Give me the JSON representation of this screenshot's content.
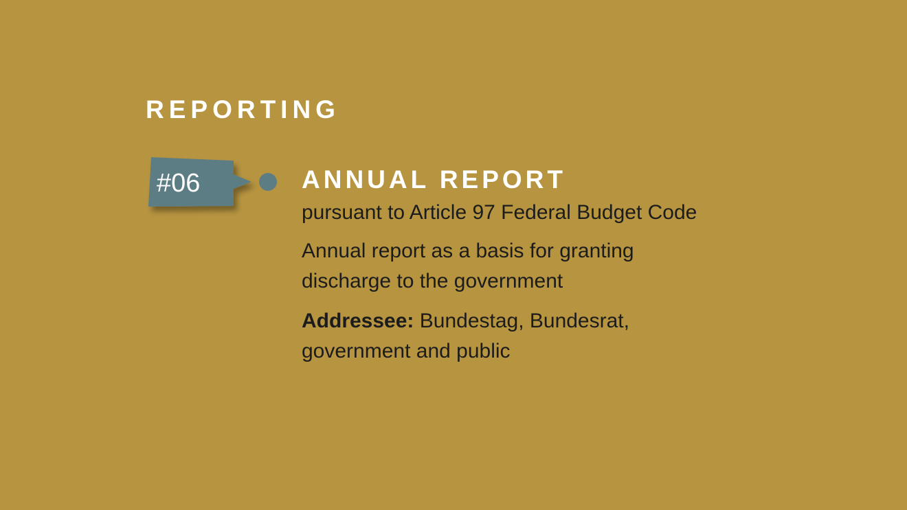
{
  "section": {
    "title": "REPORTING"
  },
  "item": {
    "number": "#06",
    "title": "ANNUAL REPORT",
    "subtitle": "pursuant to Article 97 Federal Budget Code",
    "description_lines": [
      "Annual report as a basis for granting",
      "discharge to the government"
    ],
    "addressee_label": "Addressee:",
    "addressee_lines": [
      "Bundestag, Bundesrat,",
      "government and public"
    ]
  },
  "colors": {
    "background": "#b69440",
    "tag": "#5d7d84",
    "heading_text": "#ffffff",
    "body_text": "#1c1c1c"
  }
}
